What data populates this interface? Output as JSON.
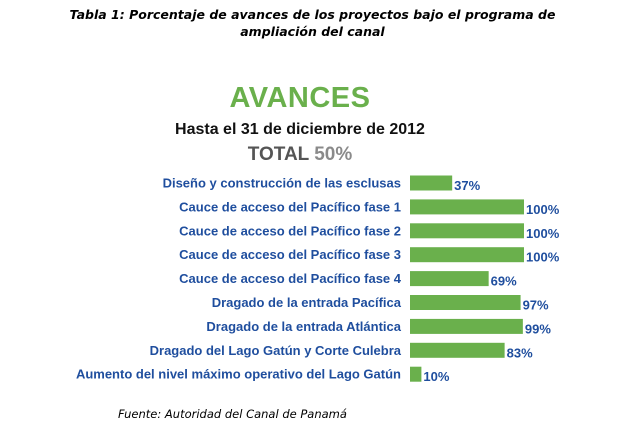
{
  "caption": {
    "line1": "Tabla 1: Porcentaje de avances de los proyectos bajo el programa de",
    "line2": "ampliación  del canal"
  },
  "chart_data": {
    "type": "bar",
    "orientation": "horizontal",
    "title": "AVANCES",
    "subtitle": "Hasta el 31 de diciembre de 2012",
    "total_label": "TOTAL",
    "total_value": "50%",
    "categories": [
      "Diseño y construcción de las esclusas",
      "Cauce de acceso del Pacífico   fase 1",
      "Cauce de acceso del Pacífico   fase 2",
      "Cauce de acceso del Pacífico   fase 3",
      "Cauce de acceso del Pacífico   fase 4",
      "Dragado de la entrada Pacífica",
      "Dragado de la entrada Atlántica",
      "Dragado del Lago Gatún y Corte Culebra",
      "Aumento del nivel máximo operativo del Lago Gatún"
    ],
    "values": [
      37,
      100,
      100,
      100,
      69,
      97,
      99,
      83,
      10
    ],
    "value_labels": [
      "37%",
      "100%",
      "100%",
      "100%",
      "69%",
      "97%",
      "99%",
      "83%",
      "10%"
    ],
    "xlim": [
      0,
      100
    ],
    "unit": "%",
    "grid": false,
    "bar_color": "#6ab04c"
  },
  "source": "Fuente: Autoridad del Canal de Panamá"
}
